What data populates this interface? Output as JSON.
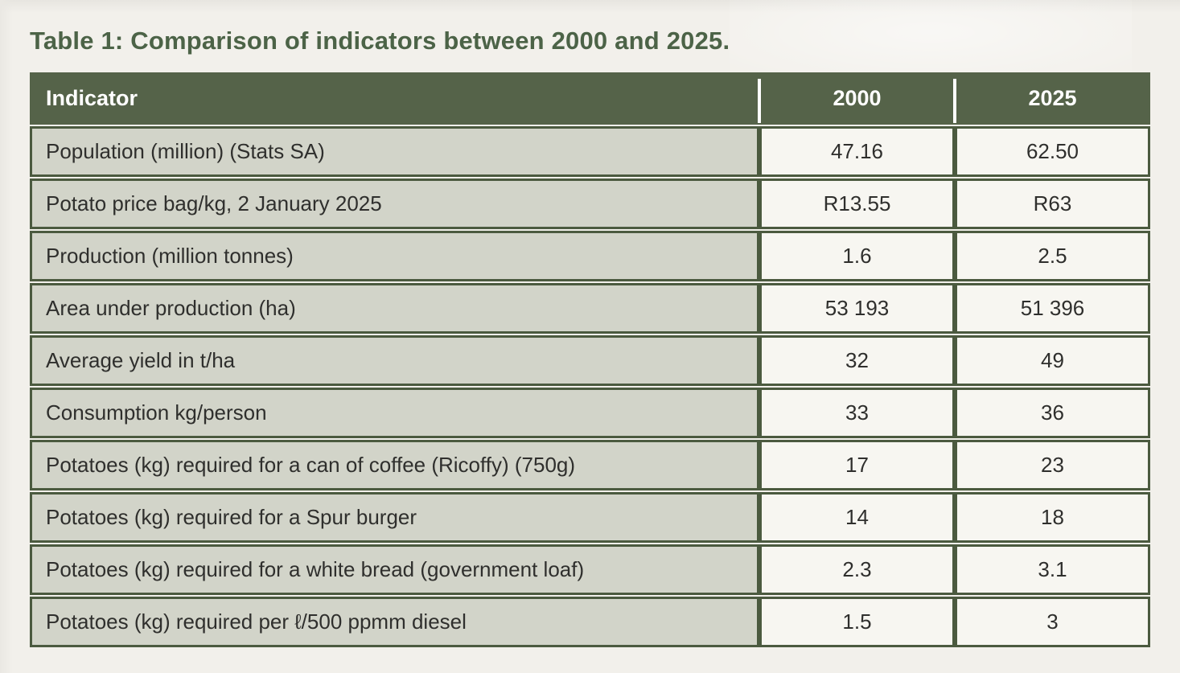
{
  "title": "Table 1: Comparison of indicators between 2000 and 2025.",
  "table": {
    "columns": [
      "Indicator",
      "2000",
      "2025"
    ],
    "rows": [
      {
        "indicator": "Population (million) (Stats SA)",
        "v2000": "47.16",
        "v2025": "62.50"
      },
      {
        "indicator": "Potato price bag/kg, 2 January 2025",
        "v2000": "R13.55",
        "v2025": "R63"
      },
      {
        "indicator": "Production (million tonnes)",
        "v2000": "1.6",
        "v2025": "2.5"
      },
      {
        "indicator": "Area under production (ha)",
        "v2000": "53 193",
        "v2025": "51 396"
      },
      {
        "indicator": "Average yield in t/ha",
        "v2000": "32",
        "v2025": "49"
      },
      {
        "indicator": "Consumption kg/person",
        "v2000": "33",
        "v2025": "36"
      },
      {
        "indicator": "Potatoes (kg) required for a can of coffee (Ricoffy) (750g)",
        "v2000": "17",
        "v2025": "23"
      },
      {
        "indicator": "Potatoes (kg) required for a Spur burger",
        "v2000": "14",
        "v2025": "18"
      },
      {
        "indicator": "Potatoes (kg) required for a white bread (government loaf)",
        "v2000": "2.3",
        "v2025": "3.1"
      },
      {
        "indicator": "Potatoes (kg) required per ℓ/500 ppmm diesel",
        "v2000": "1.5",
        "v2025": "3"
      }
    ]
  },
  "colors": {
    "header_background": "#556349",
    "cell_border": "#4b5a3f",
    "indicator_cell_background": "#d2d4c9",
    "value_cell_background": "#f7f6f1",
    "title_text": "#4c6347",
    "header_text": "#ffffff",
    "body_text": "#2f2f2d",
    "page_background": "#f2f0eb"
  }
}
